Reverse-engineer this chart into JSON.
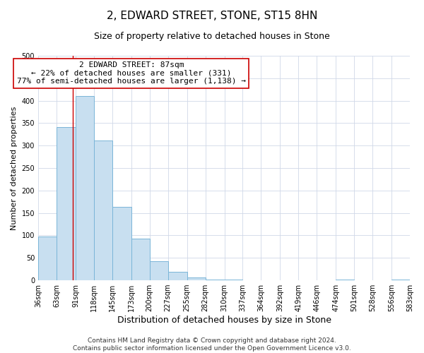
{
  "title": "2, EDWARD STREET, STONE, ST15 8HN",
  "subtitle": "Size of property relative to detached houses in Stone",
  "xlabel": "Distribution of detached houses by size in Stone",
  "ylabel": "Number of detached properties",
  "footer_lines": [
    "Contains HM Land Registry data © Crown copyright and database right 2024.",
    "Contains public sector information licensed under the Open Government Licence v3.0."
  ],
  "bin_edges": [
    36,
    63,
    91,
    118,
    145,
    173,
    200,
    227,
    255,
    282,
    310,
    337,
    364,
    392,
    419,
    446,
    474,
    501,
    528,
    556,
    583
  ],
  "bar_heights": [
    97,
    342,
    411,
    311,
    164,
    93,
    42,
    19,
    7,
    2,
    1,
    0,
    0,
    0,
    0,
    0,
    2,
    0,
    0,
    1
  ],
  "bar_color": "#c8dff0",
  "bar_edge_color": "#7ab5d8",
  "property_line_x": 87,
  "property_line_color": "#cc0000",
  "annotation_line1": "2 EDWARD STREET: 87sqm",
  "annotation_line2": "← 22% of detached houses are smaller (331)",
  "annotation_line3": "77% of semi-detached houses are larger (1,138) →",
  "annotation_box_color": "#ffffff",
  "annotation_box_edge_color": "#cc0000",
  "ylim": [
    0,
    500
  ],
  "background_color": "#ffffff",
  "grid_color": "#d0d8e8",
  "title_fontsize": 11,
  "subtitle_fontsize": 9,
  "xlabel_fontsize": 9,
  "ylabel_fontsize": 8,
  "tick_label_fontsize": 7,
  "annotation_fontsize": 8,
  "footer_fontsize": 6.5
}
